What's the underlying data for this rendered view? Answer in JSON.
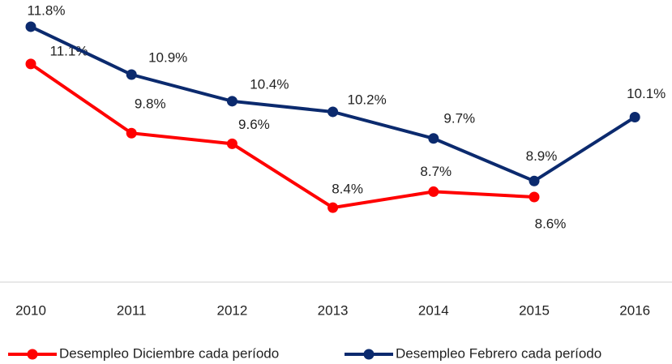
{
  "chart_data": {
    "type": "line",
    "categories": [
      "2010",
      "2011",
      "2012",
      "2013",
      "2014",
      "2015",
      "2016"
    ],
    "series": [
      {
        "name": "Desempleo Diciembre cada período",
        "color": "#ff0000",
        "values": [
          11.1,
          9.8,
          9.6,
          8.4,
          8.7,
          8.6,
          null
        ],
        "value_labels": [
          "11.1%",
          "9.8%",
          "9.6%",
          "8.4%",
          "8.7%",
          "8.6%",
          null
        ]
      },
      {
        "name": "Desempleo Febrero cada período",
        "color": "#0b2a6e",
        "values": [
          11.8,
          10.9,
          10.4,
          10.2,
          9.7,
          8.9,
          10.1
        ],
        "value_labels": [
          "11.8%",
          "10.9%",
          "10.4%",
          "10.2%",
          "9.7%",
          "8.9%",
          "10.1%"
        ]
      }
    ],
    "ylim": [
      7,
      12.5
    ]
  }
}
